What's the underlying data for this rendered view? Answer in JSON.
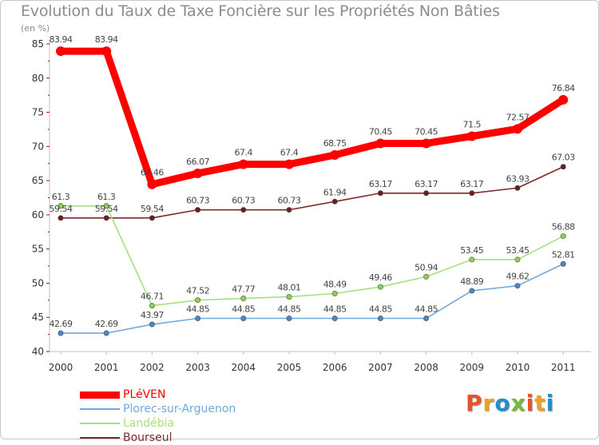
{
  "title": "Evolution du Taux de Taxe Foncière sur les Propriétés Non Bâties",
  "unit_label": "(en %)",
  "logo": {
    "text": "Proxiti",
    "colors": [
      "#e8522a",
      "#f0a020",
      "#1f8fd0",
      "#7ab83a",
      "#e8522a",
      "#f0a020",
      "#1f8fd0"
    ]
  },
  "chart_data": {
    "type": "line",
    "title": "Evolution du Taux de Taxe Foncière sur les Propriétés Non Bâties",
    "ylabel": "(en %)",
    "xlabel": "",
    "ylim": [
      40,
      85
    ],
    "yticks": [
      40,
      45,
      50,
      55,
      60,
      65,
      70,
      75,
      80,
      85
    ],
    "grid": false,
    "legend_position": "bottom-left",
    "categories": [
      "2000",
      "2001",
      "2002",
      "2003",
      "2004",
      "2005",
      "2006",
      "2007",
      "2008",
      "2009",
      "2010",
      "2011"
    ],
    "series": [
      {
        "name": "PLéVEN",
        "color": "#ff0000",
        "marker": "#ff0000",
        "values": [
          83.94,
          83.94,
          64.46,
          66.07,
          67.4,
          67.4,
          68.75,
          70.45,
          70.45,
          71.5,
          72.57,
          76.84
        ],
        "labels": [
          "83.94",
          "83.94",
          "64.46",
          "66.07",
          "67.4",
          "67.4",
          "68.75",
          "70.45",
          "70.45",
          "71.5",
          "72.57",
          "76.84"
        ]
      },
      {
        "name": "Plorec-sur-Arguenon",
        "color": "#6fa8dc",
        "marker": "#4a86c5",
        "values": [
          42.69,
          42.69,
          43.97,
          44.85,
          44.85,
          44.85,
          44.85,
          44.85,
          44.85,
          48.89,
          49.62,
          52.81
        ],
        "labels": [
          "42.69",
          "42.69",
          "43.97",
          "44.85",
          "44.85",
          "44.85",
          "44.85",
          "44.85",
          "44.85",
          "48.89",
          "49.62",
          "52.81"
        ]
      },
      {
        "name": "Landébia",
        "color": "#a8e080",
        "marker": "#8bd14d",
        "values": [
          61.3,
          61.3,
          46.71,
          47.52,
          47.77,
          48.01,
          48.49,
          49.46,
          50.94,
          53.45,
          53.45,
          56.88
        ],
        "labels": [
          "61.3",
          "61.3",
          "46.71",
          "47.52",
          "47.77",
          "48.01",
          "48.49",
          "49.46",
          "50.94",
          "53.45",
          "53.45",
          "56.88"
        ]
      },
      {
        "name": "Bourseul",
        "color": "#7a2a2a",
        "marker": "#6b1e1e",
        "values": [
          59.54,
          59.54,
          59.54,
          60.73,
          60.73,
          60.73,
          61.94,
          63.17,
          63.17,
          63.17,
          63.93,
          67.03
        ],
        "labels": [
          "59.54",
          "59.54",
          "59.54",
          "60.73",
          "60.73",
          "60.73",
          "61.94",
          "63.17",
          "63.17",
          "63.17",
          "63.93",
          "67.03"
        ]
      }
    ]
  }
}
